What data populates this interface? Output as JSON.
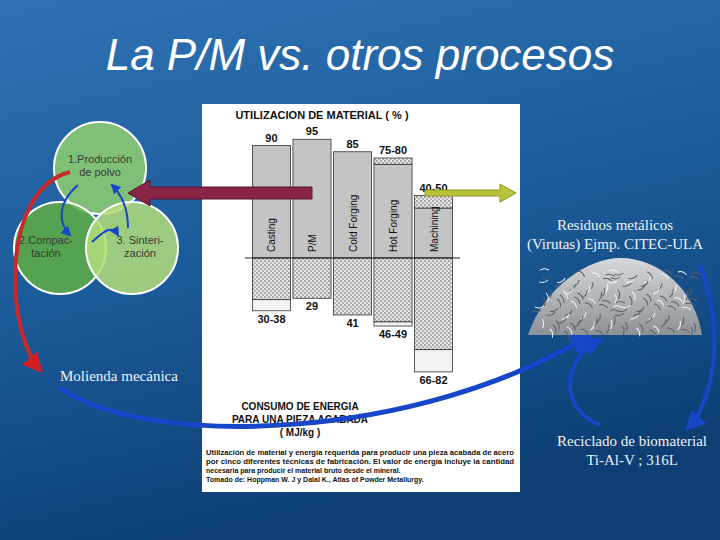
{
  "slide": {
    "title": "La P/M vs. otros procesos",
    "venn": [
      {
        "lines": [
          "1.Producción",
          "de polvo"
        ]
      },
      {
        "lines": [
          "2.Compac-",
          "tación"
        ]
      },
      {
        "lines": [
          "3. Sinteri-",
          "zación"
        ]
      }
    ],
    "residuos": [
      "Residuos metálicos",
      "(Virutas) Ejmp. CITEC-ULA"
    ],
    "molienda": "Molienda mecánica",
    "reciclado": [
      "Reciclado de biomaterial",
      "Ti-Al-V ; 316L"
    ]
  },
  "chart_data": {
    "type": "bar",
    "title": "UTILIZACION DE MATERIAL ( % )",
    "y2_label": [
      "CONSUMO DE ENERGIA",
      "PARA UNA PIEZA ACABADA",
      "( MJ/kg )"
    ],
    "caption": [
      "Utilización de material y energía requerida para producir una pieza acabada de acero",
      "por cinco diferentes técnicas de fabricación. El valor de energía incluye la cantidad",
      "necesaria para producir el material bruto desde el mineral.",
      "Tomado de:  Hoppman W. J y Dalal K., Atlas of Powder Metallurgy."
    ],
    "categories": [
      "Casting",
      "P/M",
      "Cold Forging",
      "Hot Forging",
      "Machining"
    ],
    "series": [
      {
        "values": [
          90,
          95,
          85,
          80,
          50
        ],
        "low": [
          90,
          95,
          85,
          75,
          40
        ],
        "value_labels": [
          "90",
          "95",
          "85",
          "75-80",
          "40-50"
        ],
        "color": "#c4c4c4"
      },
      {
        "values": [
          38,
          29,
          41,
          49,
          82
        ],
        "low": [
          30,
          29,
          41,
          46,
          66
        ],
        "value_labels": [
          "30-38",
          "29",
          "41",
          "46-49",
          "66-82"
        ],
        "color": "#d2d2d2",
        "axis": "y2"
      }
    ],
    "ylim": [
      0,
      100
    ],
    "y2lim": [
      0,
      90
    ],
    "tick_labels": false,
    "grid": false,
    "data_labels": true
  }
}
